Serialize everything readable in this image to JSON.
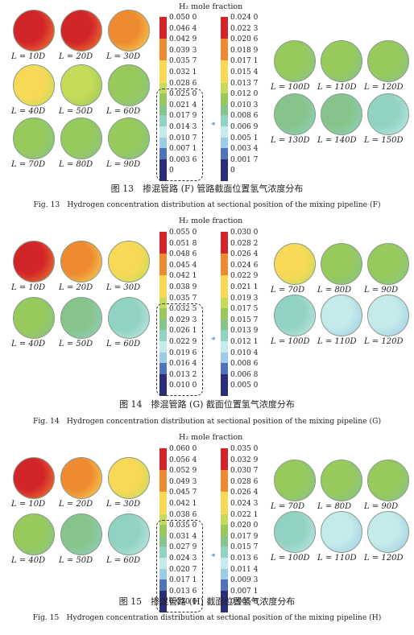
{
  "colors": {
    "red": "#d2252a",
    "orange": "#ee8a32",
    "yellow": "#f7d957",
    "lime": "#c4dc5a",
    "green": "#98c95c",
    "mid_green": "#86c48c",
    "teal": "#92d2c2",
    "cyan": "#c4eaea",
    "light_blue": "#9ecbe6",
    "blue": "#4f74b8",
    "navy": "#2c2d78"
  },
  "figures": [
    {
      "title": "H₂ mole fraction",
      "caption_zh": "图 13　掺混管路 (F) 管路截面位置氢气浓度分布",
      "caption_en": "Fig. 13　Hydrogen concentration distribution at sectional position of the mixing pipeline (F)",
      "left_labels": [
        "L = 10D",
        "L = 20D",
        "L = 30D",
        "L = 40D",
        "L = 50D",
        "L = 60D",
        "L = 70D",
        "L = 80D",
        "L = 90D"
      ],
      "right_labels": [
        "L = 100D",
        "L = 110D",
        "L = 120D",
        "L = 130D",
        "L = 140D",
        "L = 150D"
      ],
      "scale1": [
        "0.050 0",
        "0.046 4",
        "0.042 9",
        "0.039 3",
        "0.035 7",
        "0.032 1",
        "0.028 6",
        "0.025 0",
        "0.021 4",
        "0.017 9",
        "0.014 3",
        "0.010 7",
        "0.007 1",
        "0.003 6",
        "0"
      ],
      "scale2": [
        "0.024 0",
        "0.022 3",
        "0.020 6",
        "0.018 9",
        "0.017 1",
        "0.015 4",
        "0.013 7",
        "0.012 0",
        "0.010 3",
        "0.008 6",
        "0.006 9",
        "0.005 1",
        "0.003 4",
        "0.001 7",
        "0"
      ],
      "left_fills": [
        "red",
        "red",
        "orange",
        "yellow",
        "lime",
        "green",
        "green",
        "green",
        "green"
      ],
      "right_fills": [
        "green",
        "green",
        "green",
        "mid_green",
        "mid_green",
        "teal"
      ]
    },
    {
      "title": "H₂ mole fraction",
      "caption_zh": "图 14　掺混管路 (G) 截面位置氢气浓度分布",
      "caption_en": "Fig. 14　Hydrogen concentration distribution at sectional position of the mixing pipeline (G)",
      "left_labels": [
        "L = 10D",
        "L = 20D",
        "L = 30D",
        "L = 40D",
        "L = 50D",
        "L = 60D"
      ],
      "right_labels": [
        "L = 70D",
        "L = 80D",
        "L = 90D",
        "L = 100D",
        "L = 110D",
        "L = 120D"
      ],
      "scale1": [
        "0.055 0",
        "0.051 8",
        "0.048 6",
        "0.045 4",
        "0.042 1",
        "0.038 9",
        "0.035 7",
        "0.032 5",
        "0.029 3",
        "0.026 1",
        "0.022 9",
        "0.019 6",
        "0.016 4",
        "0.013 2",
        "0.010 0"
      ],
      "scale2": [
        "0.030 0",
        "0.028 2",
        "0.026 4",
        "0.024 6",
        "0.022 9",
        "0.021 1",
        "0.019 3",
        "0.017 5",
        "0.015 7",
        "0.013 9",
        "0.012 1",
        "0.010 4",
        "0.008 6",
        "0.006 8",
        "0.005 0"
      ],
      "left_fills": [
        "red",
        "orange",
        "yellow",
        "green",
        "mid_green",
        "teal"
      ],
      "right_fills": [
        "yellow",
        "green",
        "green",
        "teal",
        "cyan",
        "cyan"
      ]
    },
    {
      "title": "H₂ mole fraction",
      "caption_zh": "图 15　掺混管路 (H) 截面位置氢气浓度分布",
      "caption_en": "Fig. 15　Hydrogen concentration distribution at sectional position of the mixing pipeline (H)",
      "left_labels": [
        "L = 10D",
        "L = 20D",
        "L = 30D",
        "L = 40D",
        "L = 50D",
        "L = 60D"
      ],
      "right_labels": [
        "L = 70D",
        "L = 80D",
        "L = 90D",
        "L = 100D",
        "L = 110D",
        "L = 120D"
      ],
      "scale1": [
        "0.060 0",
        "0.056 4",
        "0.052 9",
        "0.049 3",
        "0.045 7",
        "0.042 1",
        "0.038 6",
        "0.035 0",
        "0.031 4",
        "0.027 9",
        "0.024 3",
        "0.020 7",
        "0.017 1",
        "0.013 6",
        "0.010 0"
      ],
      "scale2": [
        "0.035 0",
        "0.032 9",
        "0.030 7",
        "0.028 6",
        "0.026 4",
        "0.024 3",
        "0.022 1",
        "0.020 0",
        "0.017 9",
        "0.015 7",
        "0.013 6",
        "0.011 4",
        "0.009 3",
        "0.007 1",
        "0.005 0"
      ],
      "left_fills": [
        "red",
        "orange",
        "yellow",
        "green",
        "mid_green",
        "teal"
      ],
      "right_fills": [
        "green",
        "green",
        "green",
        "teal",
        "cyan",
        "cyan"
      ]
    }
  ]
}
